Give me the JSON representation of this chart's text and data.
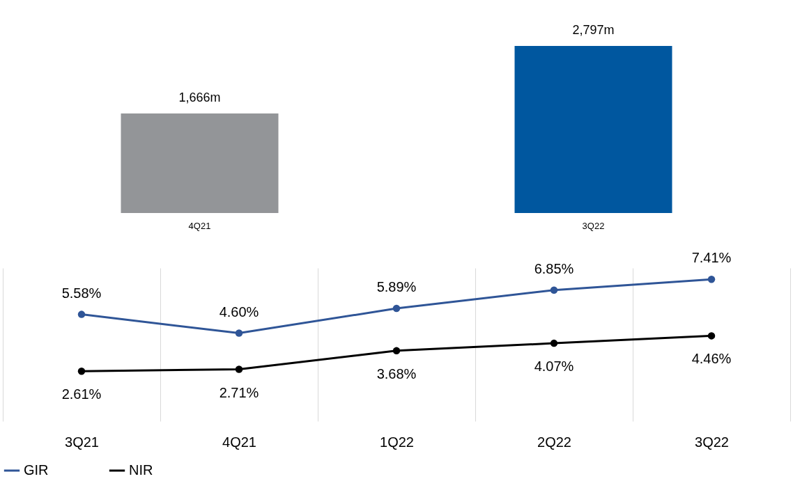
{
  "chart_data": [
    {
      "type": "bar",
      "categories": [
        "4Q21",
        "3Q22"
      ],
      "values": [
        1666,
        2797
      ],
      "colors": [
        "#939598",
        "#00579f"
      ],
      "value_labels": [
        "1,666m",
        "2,797m"
      ]
    },
    {
      "type": "line",
      "categories": [
        "3Q21",
        "4Q21",
        "1Q22",
        "2Q22",
        "3Q22"
      ],
      "grid": "x",
      "legend": "bottom",
      "marker": "circle",
      "line_style": "solid",
      "series": [
        {
          "name": "GIR",
          "color": "#2f5597",
          "values": [
            5.58,
            4.6,
            5.89,
            6.85,
            7.41
          ],
          "value_labels": [
            "5.58%",
            "4.60%",
            "5.89%",
            "6.85%",
            "7.41%"
          ]
        },
        {
          "name": "NIR",
          "color": "#000000",
          "values": [
            2.61,
            2.71,
            3.68,
            4.07,
            4.46
          ],
          "value_labels": [
            "2.61%",
            "2.71%",
            "3.68%",
            "4.07%",
            "4.46%"
          ]
        }
      ]
    }
  ]
}
